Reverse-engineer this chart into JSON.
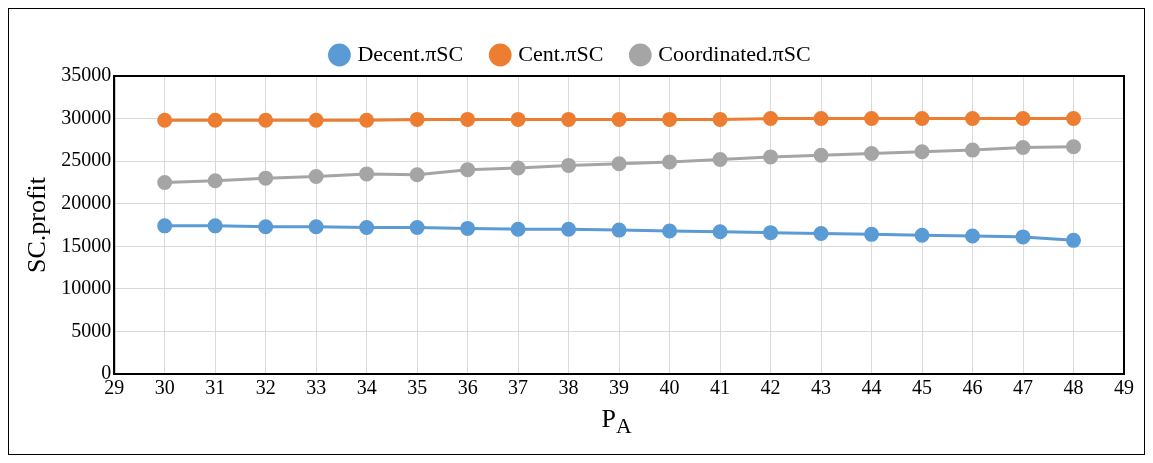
{
  "chart_data": {
    "type": "line",
    "xlabel": "P$_{A}$",
    "ylabel": "SC.profit",
    "x": [
      30,
      31,
      32,
      33,
      34,
      35,
      36,
      37,
      38,
      39,
      40,
      41,
      42,
      43,
      44,
      45,
      46,
      47,
      48
    ],
    "series": [
      {
        "name": "Decent.πSC",
        "color": "#5b9bd5",
        "values": [
          17400,
          17400,
          17300,
          17300,
          17200,
          17200,
          17100,
          17000,
          17000,
          16900,
          16800,
          16700,
          16600,
          16500,
          16400,
          16300,
          16200,
          16100,
          15700
        ]
      },
      {
        "name": "Cent.πSC",
        "color": "#ed7d31",
        "values": [
          29800,
          29800,
          29800,
          29800,
          29800,
          29900,
          29900,
          29900,
          29900,
          29900,
          29900,
          29900,
          30000,
          30000,
          30000,
          30000,
          30000,
          30000,
          30000
        ]
      },
      {
        "name": "Coordinated.πSC",
        "color": "#a5a5a5",
        "values": [
          22500,
          22700,
          23000,
          23200,
          23500,
          23400,
          24000,
          24200,
          24500,
          24700,
          24900,
          25200,
          25500,
          25700,
          25900,
          26100,
          26300,
          26600,
          26700
        ]
      }
    ],
    "xlim": [
      29,
      49
    ],
    "xticks": [
      29,
      30,
      31,
      32,
      33,
      34,
      35,
      36,
      37,
      38,
      39,
      40,
      41,
      42,
      43,
      44,
      45,
      46,
      47,
      48,
      49
    ],
    "ylim": [
      0,
      35000
    ],
    "yticks": [
      0,
      5000,
      10000,
      15000,
      20000,
      25000,
      30000,
      35000
    ],
    "grid": true,
    "legend": "top",
    "marker": "circle",
    "line_style": "solid"
  }
}
